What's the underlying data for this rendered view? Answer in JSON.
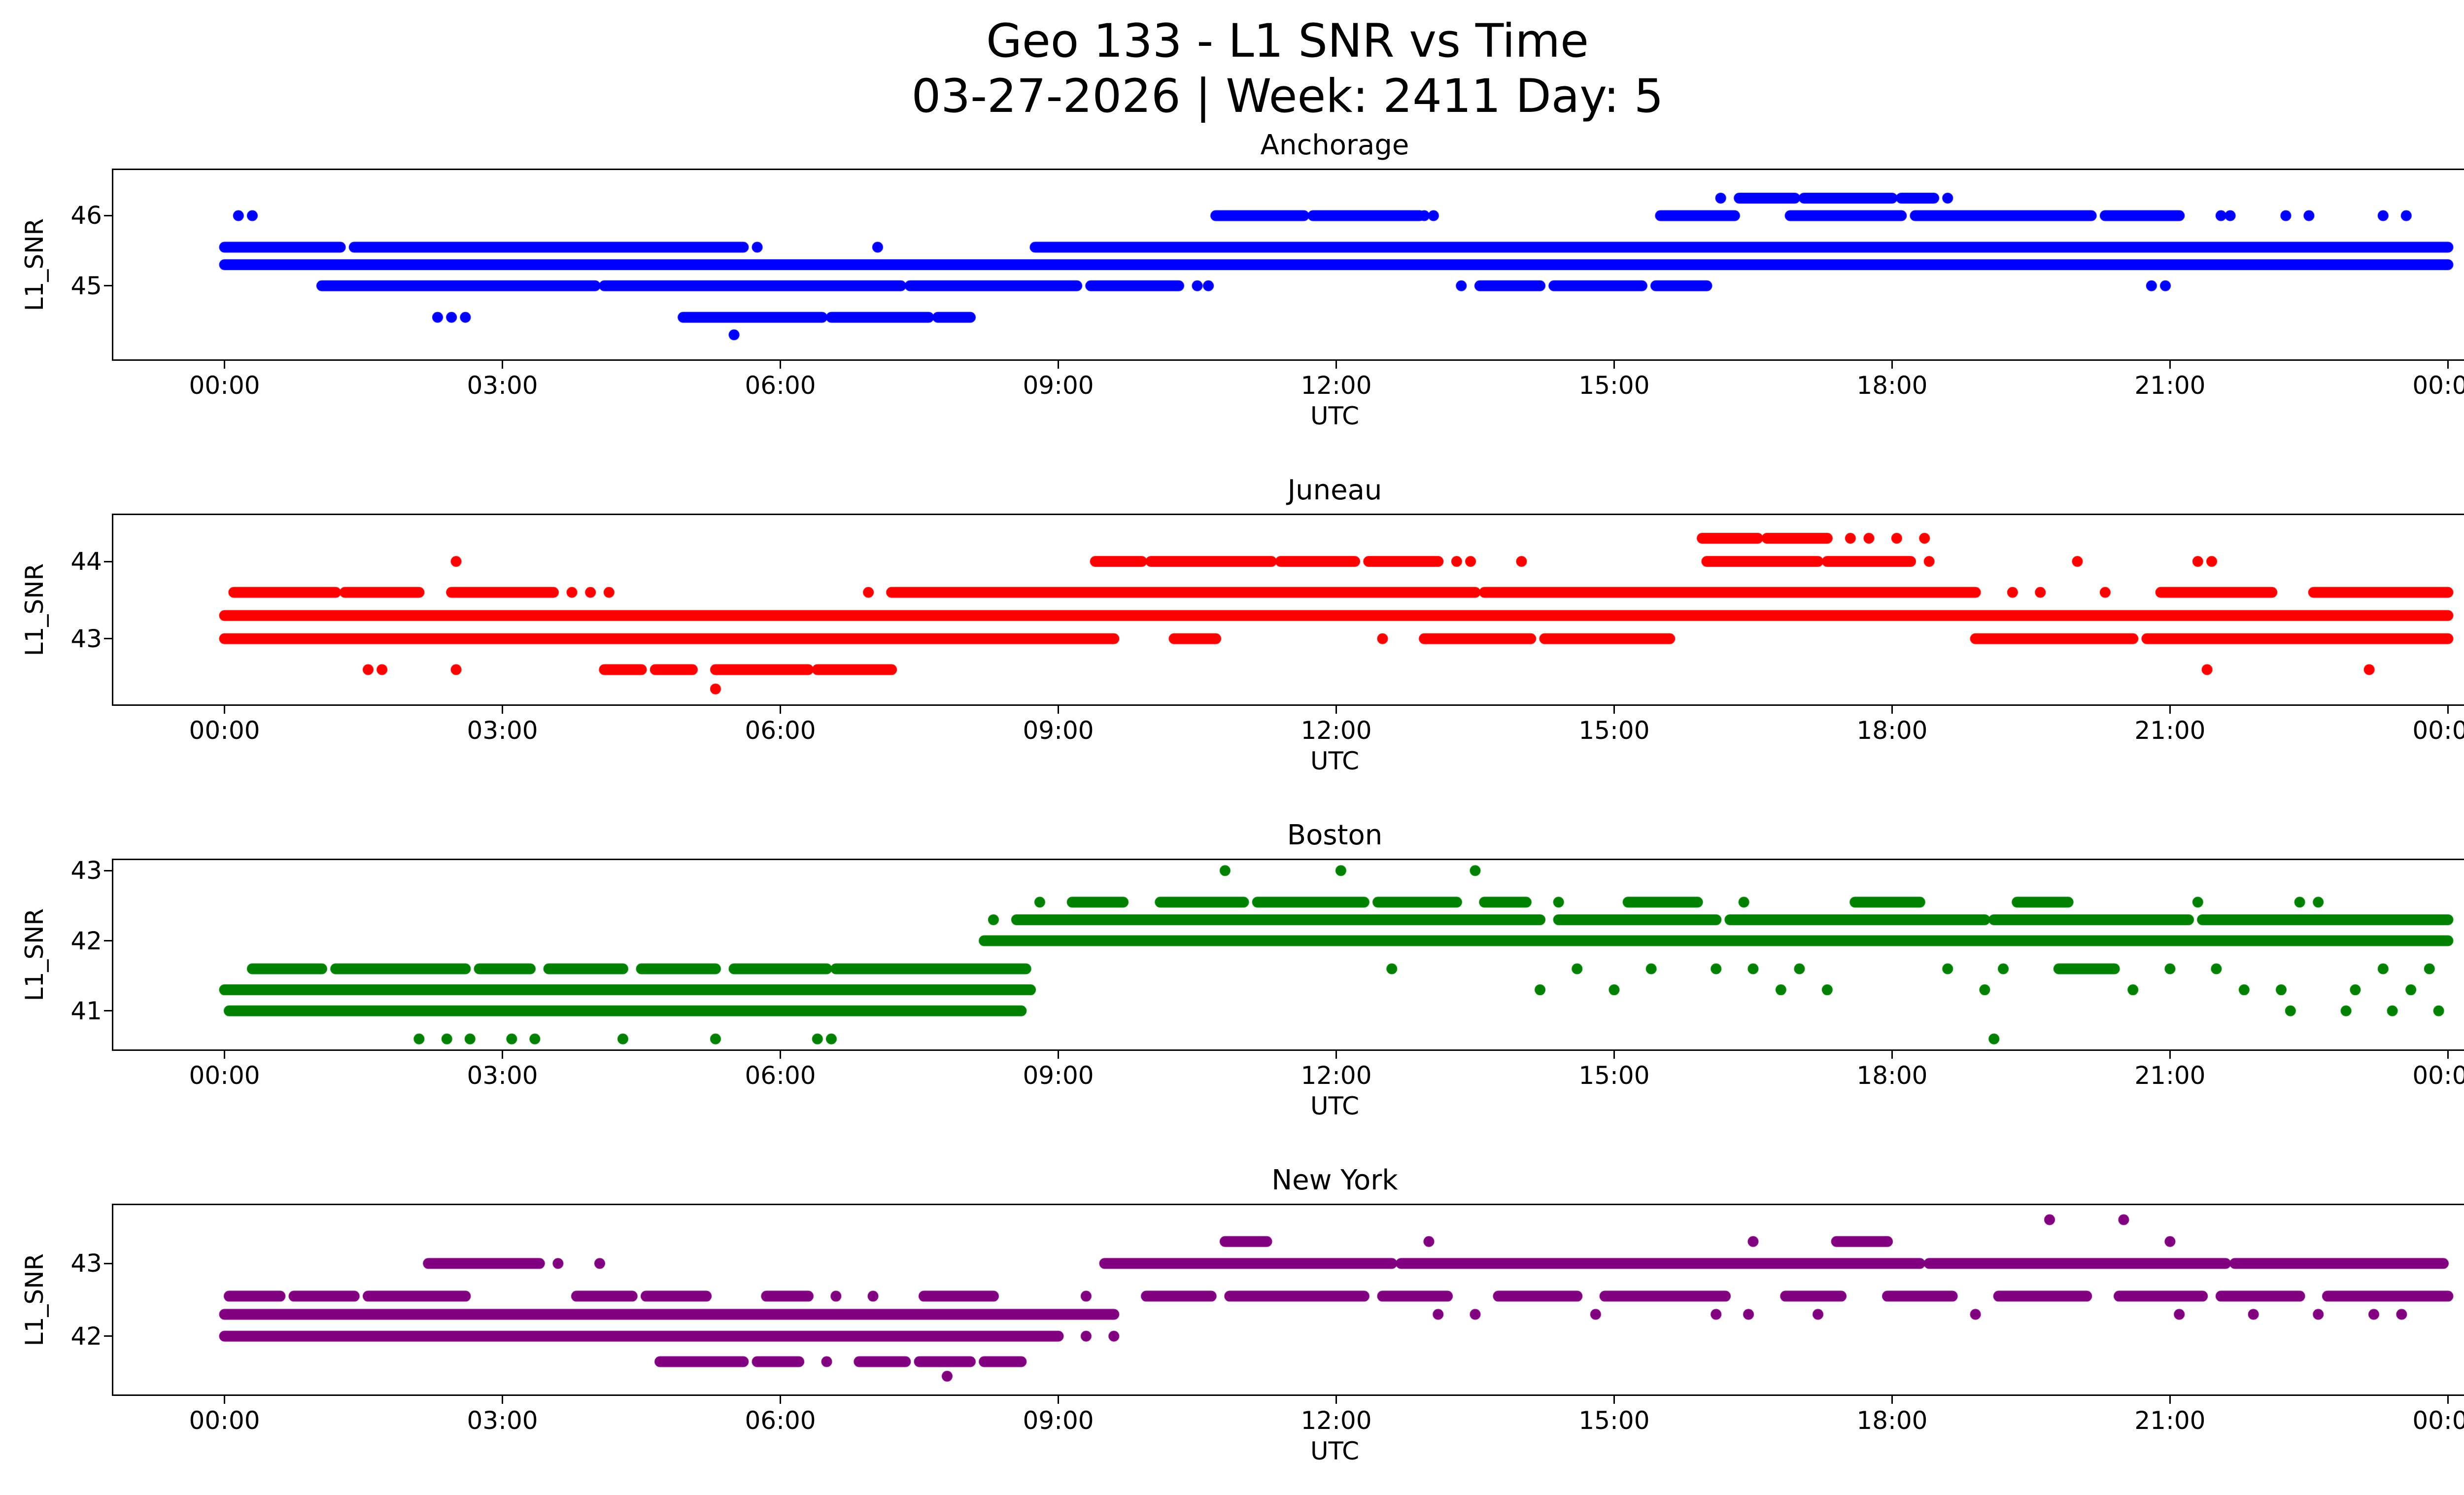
{
  "figure": {
    "title": "Geo 133 - L1 SNR vs Time",
    "subtitle": "03-27-2026 | Week: 2411 Day: 5"
  },
  "chart_data": [
    {
      "type": "scatter",
      "title": "Anchorage",
      "color": "#0000ff",
      "xlabel": "UTC",
      "ylabel": "L1_SNR",
      "grid": false,
      "legend": "none",
      "xlim": [
        -1.2,
        25.2
      ],
      "ylim": [
        43.95,
        46.65
      ],
      "yticks": [
        46,
        45
      ],
      "xtick_hours": [
        0,
        3,
        6,
        9,
        12,
        15,
        18,
        21,
        24
      ],
      "xtick_labels": [
        "00:00",
        "03:00",
        "06:00",
        "09:00",
        "12:00",
        "15:00",
        "18:00",
        "21:00",
        "00:00"
      ],
      "marker_px": 22,
      "bands": [
        {
          "y": 46.25,
          "spans": [
            [
              16.35,
              16.95
            ],
            [
              17.05,
              18.0
            ],
            [
              18.1,
              18.45
            ]
          ],
          "dots": [
            16.15,
            18.6
          ]
        },
        {
          "y": 46.0,
          "spans": [
            [
              10.7,
              11.65
            ],
            [
              11.75,
              12.9
            ],
            [
              15.5,
              16.3
            ],
            [
              16.9,
              18.1
            ],
            [
              18.25,
              20.15
            ],
            [
              20.3,
              21.1
            ]
          ],
          "dots": [
            0.15,
            0.3,
            12.95,
            13.05,
            21.55,
            21.65,
            22.25,
            22.5,
            23.3,
            23.55
          ]
        },
        {
          "y": 45.55,
          "spans": [
            [
              0.0,
              1.25
            ],
            [
              1.4,
              5.6
            ],
            [
              8.75,
              24.0
            ]
          ],
          "dots": [
            5.75,
            7.05
          ]
        },
        {
          "y": 45.3,
          "spans": [
            [
              0.0,
              24.0
            ]
          ],
          "dots": []
        },
        {
          "y": 45.0,
          "spans": [
            [
              1.05,
              4.0
            ],
            [
              4.1,
              7.3
            ],
            [
              7.4,
              9.2
            ],
            [
              9.35,
              10.3
            ],
            [
              13.55,
              14.2
            ],
            [
              14.35,
              15.3
            ],
            [
              15.45,
              16.0
            ]
          ],
          "dots": [
            10.5,
            10.62,
            13.35,
            20.8,
            20.95
          ]
        },
        {
          "y": 44.55,
          "spans": [
            [
              4.95,
              6.45
            ],
            [
              6.55,
              7.6
            ],
            [
              7.7,
              8.05
            ]
          ],
          "dots": [
            2.3,
            2.45,
            2.6
          ]
        },
        {
          "y": 44.3,
          "spans": [],
          "dots": [
            5.5
          ]
        }
      ]
    },
    {
      "type": "scatter",
      "title": "Juneau",
      "color": "#ff0000",
      "xlabel": "UTC",
      "ylabel": "L1_SNR",
      "grid": false,
      "legend": "none",
      "xlim": [
        -1.2,
        25.2
      ],
      "ylim": [
        42.15,
        44.6
      ],
      "yticks": [
        44,
        43
      ],
      "xtick_hours": [
        0,
        3,
        6,
        9,
        12,
        15,
        18,
        21,
        24
      ],
      "xtick_labels": [
        "00:00",
        "03:00",
        "06:00",
        "09:00",
        "12:00",
        "15:00",
        "18:00",
        "21:00",
        "00:00"
      ],
      "marker_px": 22,
      "bands": [
        {
          "y": 44.3,
          "spans": [
            [
              15.95,
              16.55
            ],
            [
              16.65,
              17.3
            ]
          ],
          "dots": [
            17.55,
            17.75,
            18.05,
            18.35
          ]
        },
        {
          "y": 44.0,
          "spans": [
            [
              9.4,
              9.9
            ],
            [
              10.0,
              11.3
            ],
            [
              11.4,
              12.2
            ],
            [
              12.35,
              13.1
            ],
            [
              16.0,
              17.2
            ],
            [
              17.3,
              18.2
            ]
          ],
          "dots": [
            2.5,
            13.3,
            13.45,
            14.0,
            18.4,
            20.0,
            21.3,
            21.45
          ]
        },
        {
          "y": 43.6,
          "spans": [
            [
              0.1,
              1.2
            ],
            [
              1.3,
              2.1
            ],
            [
              2.45,
              3.55
            ],
            [
              7.2,
              13.5
            ],
            [
              13.6,
              18.9
            ],
            [
              20.9,
              22.1
            ],
            [
              22.55,
              24.0
            ]
          ],
          "dots": [
            3.75,
            3.95,
            4.15,
            6.95,
            19.3,
            19.6,
            20.3
          ]
        },
        {
          "y": 43.3,
          "spans": [
            [
              0.0,
              24.0
            ]
          ],
          "dots": []
        },
        {
          "y": 43.0,
          "spans": [
            [
              0.0,
              9.6
            ],
            [
              10.25,
              10.7
            ],
            [
              12.95,
              14.1
            ],
            [
              14.25,
              15.6
            ],
            [
              18.9,
              20.6
            ],
            [
              20.75,
              24.0
            ]
          ],
          "dots": [
            12.5
          ]
        },
        {
          "y": 42.6,
          "spans": [
            [
              4.1,
              4.5
            ],
            [
              4.65,
              5.05
            ],
            [
              5.3,
              6.3
            ],
            [
              6.4,
              7.2
            ]
          ],
          "dots": [
            1.55,
            1.7,
            2.5,
            21.4,
            23.15
          ]
        },
        {
          "y": 42.35,
          "spans": [],
          "dots": [
            5.3
          ]
        }
      ]
    },
    {
      "type": "scatter",
      "title": "Boston",
      "color": "#008000",
      "xlabel": "UTC",
      "ylabel": "L1_SNR",
      "grid": false,
      "legend": "none",
      "xlim": [
        -1.2,
        25.2
      ],
      "ylim": [
        40.45,
        43.15
      ],
      "yticks": [
        43,
        42,
        41
      ],
      "xtick_hours": [
        0,
        3,
        6,
        9,
        12,
        15,
        18,
        21,
        24
      ],
      "xtick_labels": [
        "00:00",
        "03:00",
        "06:00",
        "09:00",
        "12:00",
        "15:00",
        "18:00",
        "21:00",
        "00:00"
      ],
      "marker_px": 22,
      "bands": [
        {
          "y": 43.0,
          "spans": [],
          "dots": [
            10.8,
            12.05,
            13.5
          ]
        },
        {
          "y": 42.55,
          "spans": [
            [
              9.15,
              9.7
            ],
            [
              10.1,
              11.0
            ],
            [
              11.15,
              12.3
            ],
            [
              12.45,
              13.3
            ],
            [
              13.6,
              14.05
            ],
            [
              15.15,
              15.9
            ],
            [
              17.6,
              18.3
            ],
            [
              19.35,
              19.9
            ]
          ],
          "dots": [
            8.8,
            14.4,
            16.4,
            21.3,
            22.4,
            22.6
          ]
        },
        {
          "y": 42.3,
          "spans": [
            [
              8.55,
              14.2
            ],
            [
              14.4,
              16.1
            ],
            [
              16.25,
              19.0
            ],
            [
              19.1,
              21.2
            ],
            [
              21.35,
              24.0
            ]
          ],
          "dots": [
            8.3
          ]
        },
        {
          "y": 42.0,
          "spans": [
            [
              8.2,
              24.0
            ]
          ],
          "dots": []
        },
        {
          "y": 41.6,
          "spans": [
            [
              0.3,
              1.05
            ],
            [
              1.2,
              2.6
            ],
            [
              2.75,
              3.3
            ],
            [
              3.5,
              4.3
            ],
            [
              4.5,
              5.3
            ],
            [
              5.5,
              6.5
            ],
            [
              6.6,
              8.65
            ],
            [
              19.8,
              20.4
            ]
          ],
          "dots": [
            12.6,
            14.6,
            15.4,
            16.1,
            16.5,
            17.0,
            18.6,
            19.2,
            21.0,
            21.5,
            23.3,
            23.8
          ]
        },
        {
          "y": 41.3,
          "spans": [
            [
              0.0,
              8.7
            ]
          ],
          "dots": [
            14.2,
            15.0,
            16.8,
            17.3,
            19.0,
            20.6,
            21.8,
            22.2,
            23.0,
            23.6
          ]
        },
        {
          "y": 41.0,
          "spans": [
            [
              0.05,
              8.6
            ]
          ],
          "dots": [
            22.3,
            22.9,
            23.4,
            23.9
          ]
        },
        {
          "y": 40.6,
          "spans": [],
          "dots": [
            2.1,
            2.4,
            2.65,
            3.1,
            3.35,
            4.3,
            5.3,
            6.4,
            6.55,
            19.1
          ]
        }
      ]
    },
    {
      "type": "scatter",
      "title": "New York",
      "color": "#800080",
      "xlabel": "UTC",
      "ylabel": "L1_SNR",
      "grid": false,
      "legend": "none",
      "xlim": [
        -1.2,
        25.2
      ],
      "ylim": [
        41.2,
        43.8
      ],
      "yticks": [
        43,
        42
      ],
      "xtick_hours": [
        0,
        3,
        6,
        9,
        12,
        15,
        18,
        21,
        24
      ],
      "xtick_labels": [
        "00:00",
        "03:00",
        "06:00",
        "09:00",
        "12:00",
        "15:00",
        "18:00",
        "21:00",
        "00:00"
      ],
      "marker_px": 22,
      "bands": [
        {
          "y": 43.6,
          "spans": [],
          "dots": [
            19.7,
            20.5
          ]
        },
        {
          "y": 43.3,
          "spans": [
            [
              10.8,
              11.25
            ],
            [
              17.4,
              17.95
            ]
          ],
          "dots": [
            13.0,
            16.5,
            21.0
          ]
        },
        {
          "y": 43.0,
          "spans": [
            [
              2.2,
              3.4
            ],
            [
              9.5,
              12.6
            ],
            [
              12.7,
              18.3
            ],
            [
              18.4,
              21.6
            ],
            [
              21.7,
              23.95
            ]
          ],
          "dots": [
            3.6,
            4.05
          ]
        },
        {
          "y": 42.55,
          "spans": [
            [
              0.05,
              0.6
            ],
            [
              0.75,
              1.4
            ],
            [
              1.55,
              2.6
            ],
            [
              3.8,
              4.4
            ],
            [
              4.55,
              5.2
            ],
            [
              5.85,
              6.3
            ],
            [
              7.55,
              8.3
            ],
            [
              9.95,
              10.65
            ],
            [
              10.85,
              12.3
            ],
            [
              12.5,
              13.2
            ],
            [
              13.75,
              14.6
            ],
            [
              14.9,
              16.2
            ],
            [
              16.85,
              17.45
            ],
            [
              17.95,
              18.65
            ],
            [
              19.15,
              20.1
            ],
            [
              20.45,
              21.35
            ],
            [
              21.55,
              22.4
            ],
            [
              22.7,
              24.0
            ]
          ],
          "dots": [
            6.6,
            7.0,
            9.3
          ]
        },
        {
          "y": 42.3,
          "spans": [
            [
              0.0,
              9.6
            ]
          ],
          "dots": [
            13.1,
            13.5,
            14.8,
            16.1,
            16.45,
            17.2,
            18.9,
            21.1,
            21.9,
            22.6,
            23.2,
            23.5
          ]
        },
        {
          "y": 42.0,
          "spans": [
            [
              0.0,
              9.0
            ]
          ],
          "dots": [
            9.3,
            9.6
          ]
        },
        {
          "y": 41.65,
          "spans": [
            [
              4.7,
              5.6
            ],
            [
              5.75,
              6.2
            ],
            [
              6.85,
              7.35
            ],
            [
              7.5,
              8.05
            ],
            [
              8.2,
              8.6
            ]
          ],
          "dots": [
            6.5
          ]
        },
        {
          "y": 41.45,
          "spans": [],
          "dots": [
            7.8
          ]
        }
      ]
    }
  ]
}
